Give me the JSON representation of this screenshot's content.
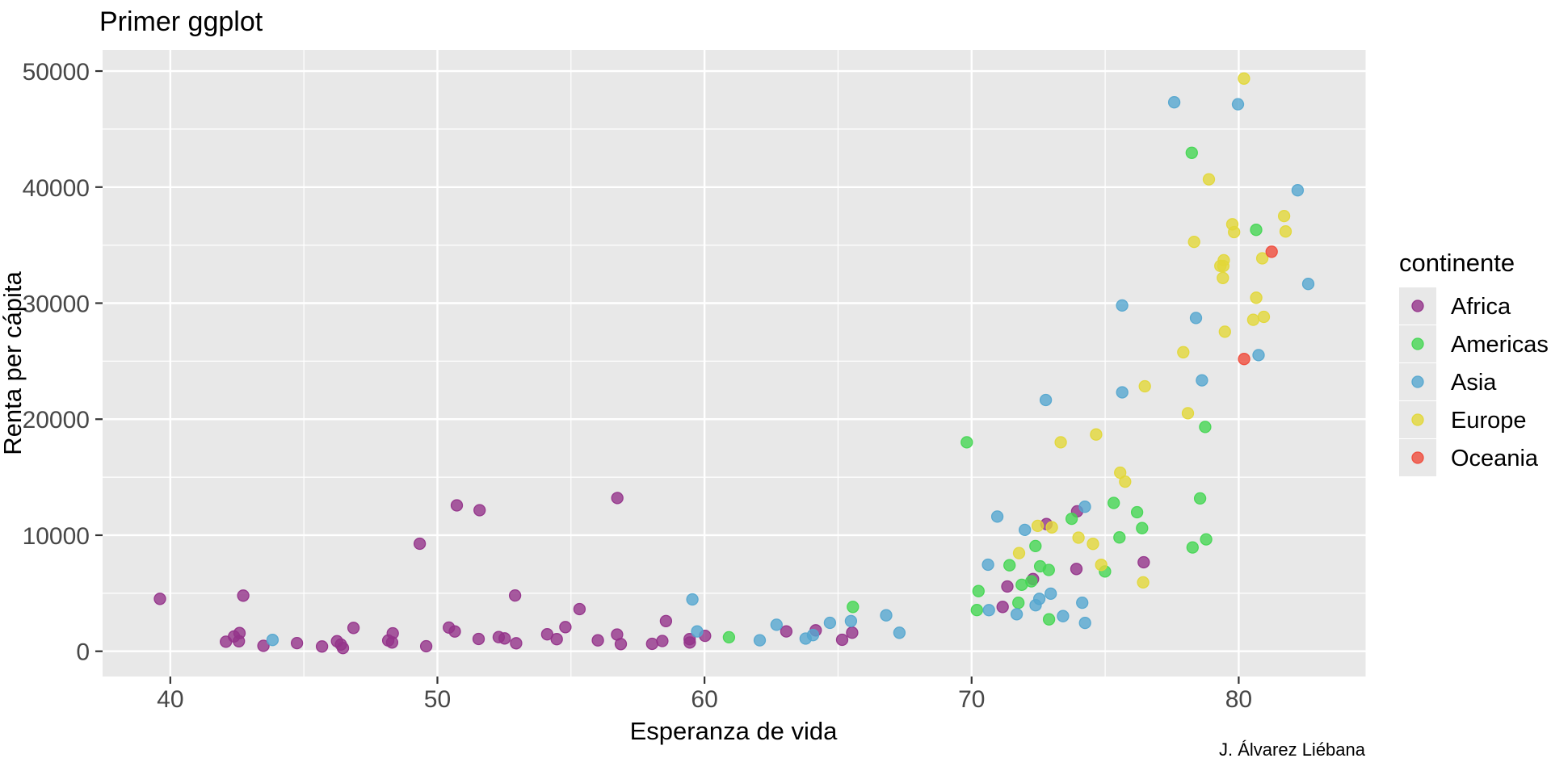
{
  "title": "Primer ggplot",
  "caption": "J. Álvarez Liébana",
  "theme": {
    "panel_bg": "#E8E8E8",
    "grid_color": "#FFFFFF",
    "tick_mark_color": "#333333",
    "tick_label_color": "#474747",
    "text_color": "#000000",
    "legend_key_bg": "#E8E8E8",
    "point_opacity": 0.8
  },
  "chart_data": {
    "type": "scatter",
    "title": "Primer ggplot",
    "xlabel": "Esperanza de vida",
    "ylabel": "Renta per cápita",
    "xlim": [
      37.4645,
      84.7515
    ],
    "ylim": [
      -2176.4,
      51811.2
    ],
    "x_ticks": [
      40,
      50,
      60,
      70,
      80
    ],
    "y_ticks": [
      0,
      10000,
      20000,
      30000,
      40000,
      50000
    ],
    "x_minor": [
      45,
      55,
      65,
      75
    ],
    "y_minor": [
      5000,
      15000,
      25000,
      35000,
      45000
    ],
    "grid": true,
    "legend": {
      "title": "continente",
      "position": "right"
    },
    "series": [
      {
        "name": "Africa",
        "color": "#93338A",
        "points": [
          [
            72.301,
            6223
          ],
          [
            42.731,
            4797
          ],
          [
            56.728,
            1441
          ],
          [
            50.728,
            12570
          ],
          [
            52.295,
            1217
          ],
          [
            49.58,
            430
          ],
          [
            50.43,
            2042
          ],
          [
            44.741,
            706
          ],
          [
            50.651,
            1704
          ],
          [
            65.152,
            986
          ],
          [
            46.462,
            278
          ],
          [
            55.322,
            3633
          ],
          [
            48.328,
            1545
          ],
          [
            54.791,
            2082
          ],
          [
            71.338,
            5581
          ],
          [
            51.579,
            12154
          ],
          [
            58.04,
            641
          ],
          [
            52.947,
            691
          ],
          [
            56.735,
            13206
          ],
          [
            59.448,
            753
          ],
          [
            60.022,
            1328
          ],
          [
            56.007,
            943
          ],
          [
            46.388,
            579
          ],
          [
            54.11,
            1463
          ],
          [
            42.592,
            1569
          ],
          [
            45.678,
            415
          ],
          [
            73.952,
            12057
          ],
          [
            59.443,
            1045
          ],
          [
            48.303,
            759
          ],
          [
            54.467,
            1043
          ],
          [
            64.164,
            1803
          ],
          [
            72.801,
            10957
          ],
          [
            71.164,
            3820
          ],
          [
            42.082,
            824
          ],
          [
            52.906,
            4811
          ],
          [
            56.867,
            620
          ],
          [
            46.859,
            2014
          ],
          [
            76.442,
            7670
          ],
          [
            46.242,
            863
          ],
          [
            65.528,
            1598
          ],
          [
            63.062,
            1712
          ],
          [
            42.568,
            863
          ],
          [
            48.159,
            926
          ],
          [
            49.339,
            9270
          ],
          [
            58.556,
            2602
          ],
          [
            39.613,
            4513
          ],
          [
            52.517,
            1107
          ],
          [
            58.42,
            883
          ],
          [
            73.923,
            7093
          ],
          [
            51.542,
            1056
          ],
          [
            42.384,
            1271
          ],
          [
            43.487,
            470
          ]
        ]
      },
      {
        "name": "Americas",
        "color": "#45D653",
        "points": [
          [
            75.32,
            12779
          ],
          [
            65.554,
            3822
          ],
          [
            72.39,
            9066
          ],
          [
            80.653,
            36319
          ],
          [
            78.553,
            13172
          ],
          [
            72.889,
            7007
          ],
          [
            78.782,
            9645
          ],
          [
            78.273,
            8948
          ],
          [
            72.235,
            6025
          ],
          [
            74.994,
            6873
          ],
          [
            71.878,
            5728
          ],
          [
            70.259,
            5186
          ],
          [
            60.916,
            1202
          ],
          [
            70.198,
            3548
          ],
          [
            72.567,
            7321
          ],
          [
            76.195,
            11978
          ],
          [
            72.899,
            2749
          ],
          [
            75.537,
            9809
          ],
          [
            71.752,
            4173
          ],
          [
            71.421,
            7409
          ],
          [
            78.746,
            19329
          ],
          [
            69.819,
            18009
          ],
          [
            78.242,
            42952
          ],
          [
            76.384,
            10611
          ],
          [
            73.747,
            11416
          ]
        ]
      },
      {
        "name": "Asia",
        "color": "#55A6CF",
        "points": [
          [
            43.828,
            975
          ],
          [
            75.635,
            29796
          ],
          [
            64.062,
            1391
          ],
          [
            59.723,
            1714
          ],
          [
            72.961,
            4959
          ],
          [
            82.208,
            39725
          ],
          [
            64.698,
            2452
          ],
          [
            70.65,
            3541
          ],
          [
            70.964,
            11606
          ],
          [
            59.545,
            4471
          ],
          [
            80.745,
            25523
          ],
          [
            82.603,
            31656
          ],
          [
            72.535,
            4519
          ],
          [
            67.297,
            1593
          ],
          [
            78.623,
            23348
          ],
          [
            77.588,
            47307
          ],
          [
            71.993,
            10461
          ],
          [
            74.241,
            12452
          ],
          [
            66.803,
            3096
          ],
          [
            62.069,
            944
          ],
          [
            63.785,
            1091
          ],
          [
            75.64,
            22316
          ],
          [
            65.483,
            2606
          ],
          [
            71.688,
            3190
          ],
          [
            72.777,
            21655
          ],
          [
            79.972,
            47143
          ],
          [
            72.396,
            3970
          ],
          [
            74.143,
            4185
          ],
          [
            78.4,
            28718
          ],
          [
            70.616,
            7458
          ],
          [
            74.249,
            2442
          ],
          [
            73.422,
            3025
          ],
          [
            62.698,
            2281
          ]
        ]
      },
      {
        "name": "Europe",
        "color": "#E2D738",
        "points": [
          [
            76.423,
            5937
          ],
          [
            79.829,
            36126
          ],
          [
            79.441,
            33693
          ],
          [
            74.852,
            7446
          ],
          [
            73.005,
            10681
          ],
          [
            75.748,
            14619
          ],
          [
            76.486,
            22833
          ],
          [
            78.332,
            35278
          ],
          [
            79.313,
            33207
          ],
          [
            80.657,
            30470
          ],
          [
            79.406,
            32170
          ],
          [
            79.483,
            27538
          ],
          [
            73.338,
            18009
          ],
          [
            81.757,
            36181
          ],
          [
            78.885,
            40676
          ],
          [
            80.546,
            28570
          ],
          [
            74.543,
            9254
          ],
          [
            79.762,
            36798
          ],
          [
            80.196,
            49357
          ],
          [
            75.563,
            15390
          ],
          [
            78.098,
            20510
          ],
          [
            72.476,
            10808
          ],
          [
            74.002,
            9787
          ],
          [
            74.663,
            18678
          ],
          [
            77.926,
            25768
          ],
          [
            80.941,
            28821
          ],
          [
            80.884,
            33860
          ],
          [
            81.701,
            37506
          ],
          [
            71.777,
            8458
          ],
          [
            79.425,
            33203
          ]
        ]
      },
      {
        "name": "Oceania",
        "color": "#EF4B3B",
        "points": [
          [
            81.235,
            34435
          ],
          [
            80.204,
            25185
          ]
        ]
      }
    ]
  }
}
